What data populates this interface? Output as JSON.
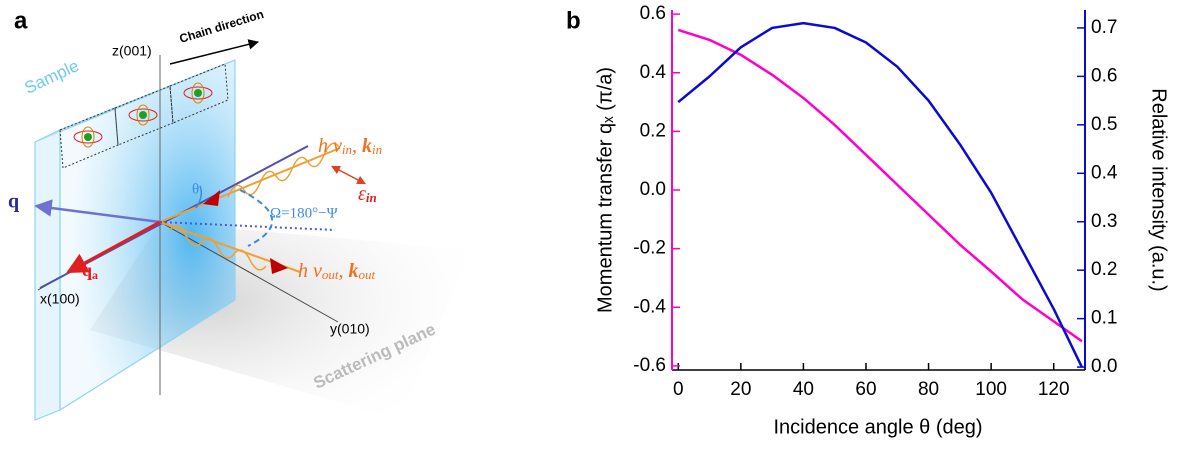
{
  "diagram": {
    "panel_label": "a",
    "labels": {
      "z_axis": "z(001)",
      "x_axis": "x(100)",
      "y_axis": "y(010)",
      "chain": "Chain direction",
      "sample": "Sample",
      "plane": "Scattering plane",
      "q": "q",
      "qa": [
        "q",
        "a"
      ],
      "theta": "θ",
      "omega": "Ω=180°−Ψ",
      "incoming": [
        "h ν",
        "in",
        ", ",
        "k",
        "in"
      ],
      "polarization": [
        "ε",
        "in"
      ],
      "outgoing": [
        "h ν",
        "out",
        ", ",
        "k",
        "out"
      ]
    }
  },
  "chart_data": {
    "type": "line",
    "panel_label": "b",
    "xlabel": "Incidence angle θ (deg)",
    "ylabel": "Momentum transfer qₓ (π/a)",
    "y2label": "Relative intensity (a.u.)",
    "x": [
      0,
      10,
      20,
      30,
      40,
      50,
      60,
      70,
      80,
      90,
      100,
      110,
      120,
      129
    ],
    "series": [
      {
        "color": "#ff00cc",
        "values": [
          0.546,
          0.512,
          0.461,
          0.393,
          0.314,
          0.222,
          0.12,
          0.018,
          -0.084,
          -0.186,
          -0.278,
          -0.373,
          -0.448,
          -0.516
        ]
      },
      {
        "color": "#0a0ad0",
        "axis": "y2",
        "values": [
          0.547,
          0.6,
          0.66,
          0.7,
          0.71,
          0.7,
          0.67,
          0.62,
          0.55,
          0.46,
          0.36,
          0.24,
          0.12,
          0.0
        ]
      }
    ],
    "xlim": [
      -2,
      130
    ],
    "xticks": [
      0,
      20,
      40,
      60,
      80,
      100,
      120
    ],
    "ylim": [
      -0.614,
      0.614
    ],
    "yticks": [
      -0.6,
      -0.4,
      -0.2,
      {
        "value": 0,
        "label": "0.0"
      },
      0.2,
      0.4,
      0.6
    ],
    "y2lim": [
      -0.006,
      0.737
    ],
    "y2ticks": [
      {
        "value": 0,
        "label": "0.0"
      },
      0.1,
      0.2,
      0.3,
      0.4,
      0.5,
      0.6,
      0.7
    ]
  }
}
